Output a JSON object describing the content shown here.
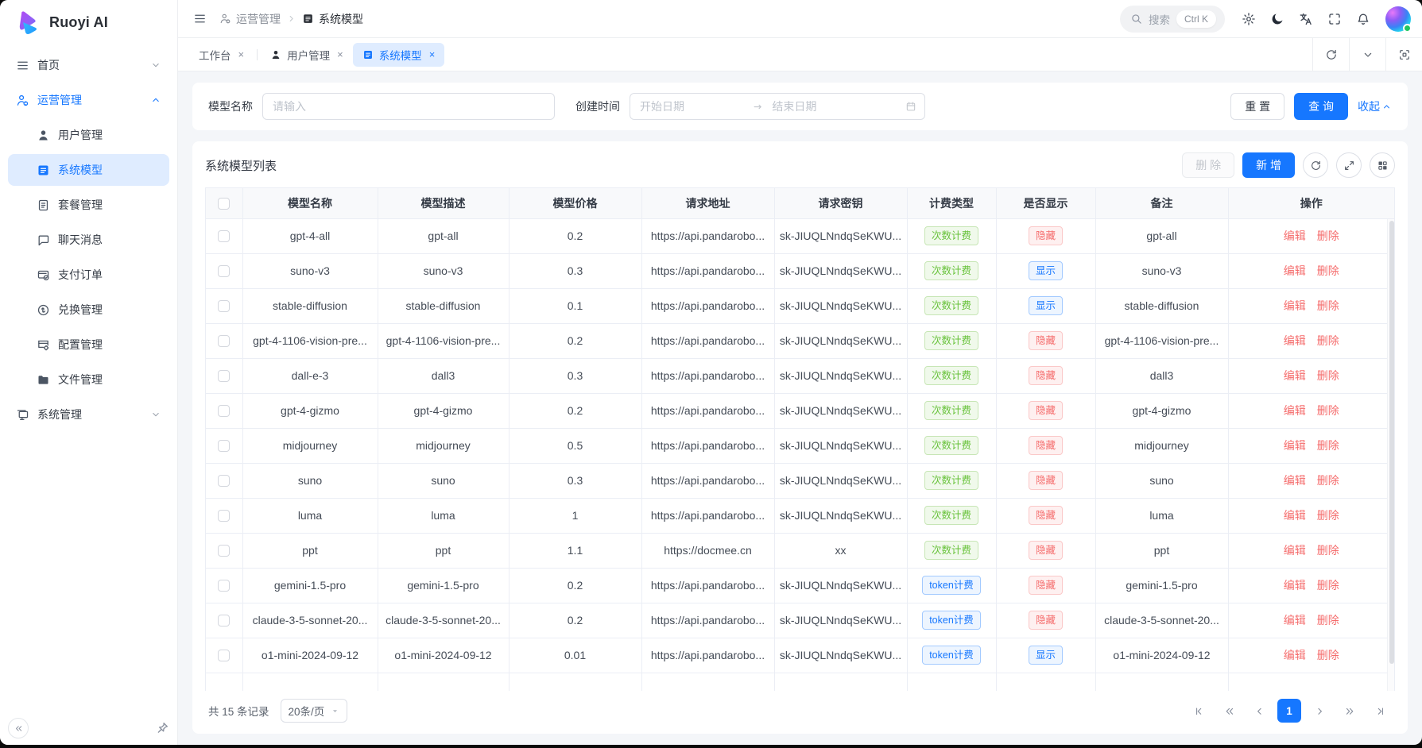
{
  "app": {
    "logo_text": "Ruoyi AI"
  },
  "colors": {
    "primary": "#1677ff",
    "tag_green": "#67c23a",
    "tag_red": "#f56c6c",
    "tag_blue": "#1677ff"
  },
  "sidebar": {
    "items": [
      {
        "id": "home",
        "label": "首页",
        "icon": "menu",
        "level": 1,
        "chevron": "down"
      },
      {
        "id": "operations",
        "label": "运营管理",
        "icon": "user-gear",
        "level": 1,
        "chevron": "up",
        "expanded": true
      },
      {
        "id": "user-management",
        "label": "用户管理",
        "icon": "user",
        "level": 2
      },
      {
        "id": "system-model",
        "label": "系统模型",
        "icon": "list",
        "level": 2,
        "active": true
      },
      {
        "id": "package-management",
        "label": "套餐管理",
        "icon": "doc",
        "level": 2
      },
      {
        "id": "chat-messages",
        "label": "聊天消息",
        "icon": "chat",
        "level": 2
      },
      {
        "id": "payment-orders",
        "label": "支付订单",
        "icon": "receipt",
        "level": 2
      },
      {
        "id": "exchange-management",
        "label": "兑换管理",
        "icon": "exchange",
        "level": 2
      },
      {
        "id": "config-management",
        "label": "配置管理",
        "icon": "config",
        "level": 2
      },
      {
        "id": "file-management",
        "label": "文件管理",
        "icon": "folder",
        "level": 2
      },
      {
        "id": "system-management",
        "label": "系统管理",
        "icon": "monitor",
        "level": 1,
        "chevron": "down"
      }
    ]
  },
  "header": {
    "breadcrumb": [
      {
        "label": "运营管理",
        "icon": "user-gear"
      },
      {
        "label": "系统模型",
        "icon": "list"
      }
    ],
    "search": {
      "placeholder": "搜索",
      "shortcut": "Ctrl K"
    },
    "icons": [
      {
        "name": "settings",
        "icon": "gear"
      },
      {
        "name": "theme-toggle",
        "icon": "moon"
      },
      {
        "name": "language",
        "icon": "translate"
      },
      {
        "name": "fullscreen",
        "icon": "fullscreen"
      },
      {
        "name": "notifications",
        "icon": "bell"
      }
    ]
  },
  "tabs": {
    "items": [
      {
        "id": "workbench",
        "label": "工作台",
        "close": "×"
      },
      {
        "id": "user-management",
        "label": "用户管理",
        "icon": "user",
        "close": "×"
      },
      {
        "id": "system-model",
        "label": "系统模型",
        "icon": "list",
        "close": "×",
        "active": true
      }
    ],
    "controls": [
      {
        "name": "refresh-tab",
        "icon": "refresh"
      },
      {
        "name": "tab-menu",
        "icon": "chevron-down"
      },
      {
        "name": "content-fullscreen",
        "icon": "content-fullscreen"
      }
    ]
  },
  "filter": {
    "model_name_label": "模型名称",
    "model_name_placeholder": "请输入",
    "create_time_label": "创建时间",
    "start_placeholder": "开始日期",
    "end_placeholder": "结束日期",
    "reset_label": "重 置",
    "query_label": "查 询",
    "collapse_label": "收起"
  },
  "table": {
    "title": "系统模型列表",
    "toolbar": {
      "delete_label": "删 除",
      "add_label": "新 增",
      "icon_buttons": [
        {
          "name": "refresh-table",
          "icon": "refresh"
        },
        {
          "name": "expand-table",
          "icon": "expand"
        },
        {
          "name": "column-settings",
          "icon": "columns"
        }
      ]
    },
    "columns": [
      "模型名称",
      "模型描述",
      "模型价格",
      "请求地址",
      "请求密钥",
      "计费类型",
      "是否显示",
      "备注",
      "操作"
    ],
    "actions": {
      "edit": "编辑",
      "delete": "删除"
    },
    "rows": [
      {
        "name": "gpt-4-all",
        "desc": "gpt-all",
        "price": "0.2",
        "url": "https://api.pandarobo...",
        "key": "sk-JIUQLNndqSeKWU...",
        "billing": "次数计费",
        "billing_color": "green",
        "visible": "隐藏",
        "visible_color": "red",
        "remark": "gpt-all"
      },
      {
        "name": "suno-v3",
        "desc": "suno-v3",
        "price": "0.3",
        "url": "https://api.pandarobo...",
        "key": "sk-JIUQLNndqSeKWU...",
        "billing": "次数计费",
        "billing_color": "green",
        "visible": "显示",
        "visible_color": "blue",
        "remark": "suno-v3"
      },
      {
        "name": "stable-diffusion",
        "desc": "stable-diffusion",
        "price": "0.1",
        "url": "https://api.pandarobo...",
        "key": "sk-JIUQLNndqSeKWU...",
        "billing": "次数计费",
        "billing_color": "green",
        "visible": "显示",
        "visible_color": "blue",
        "remark": "stable-diffusion"
      },
      {
        "name": "gpt-4-1106-vision-pre...",
        "desc": "gpt-4-1106-vision-pre...",
        "price": "0.2",
        "url": "https://api.pandarobo...",
        "key": "sk-JIUQLNndqSeKWU...",
        "billing": "次数计费",
        "billing_color": "green",
        "visible": "隐藏",
        "visible_color": "red",
        "remark": "gpt-4-1106-vision-pre..."
      },
      {
        "name": "dall-e-3",
        "desc": "dall3",
        "price": "0.3",
        "url": "https://api.pandarobo...",
        "key": "sk-JIUQLNndqSeKWU...",
        "billing": "次数计费",
        "billing_color": "green",
        "visible": "隐藏",
        "visible_color": "red",
        "remark": "dall3"
      },
      {
        "name": "gpt-4-gizmo",
        "desc": "gpt-4-gizmo",
        "price": "0.2",
        "url": "https://api.pandarobo...",
        "key": "sk-JIUQLNndqSeKWU...",
        "billing": "次数计费",
        "billing_color": "green",
        "visible": "隐藏",
        "visible_color": "red",
        "remark": "gpt-4-gizmo"
      },
      {
        "name": "midjourney",
        "desc": "midjourney",
        "price": "0.5",
        "url": "https://api.pandarobo...",
        "key": "sk-JIUQLNndqSeKWU...",
        "billing": "次数计费",
        "billing_color": "green",
        "visible": "隐藏",
        "visible_color": "red",
        "remark": "midjourney"
      },
      {
        "name": "suno",
        "desc": "suno",
        "price": "0.3",
        "url": "https://api.pandarobo...",
        "key": "sk-JIUQLNndqSeKWU...",
        "billing": "次数计费",
        "billing_color": "green",
        "visible": "隐藏",
        "visible_color": "red",
        "remark": "suno"
      },
      {
        "name": "luma",
        "desc": "luma",
        "price": "1",
        "url": "https://api.pandarobo...",
        "key": "sk-JIUQLNndqSeKWU...",
        "billing": "次数计费",
        "billing_color": "green",
        "visible": "隐藏",
        "visible_color": "red",
        "remark": "luma"
      },
      {
        "name": "ppt",
        "desc": "ppt",
        "price": "1.1",
        "url": "https://docmee.cn",
        "key": "xx",
        "billing": "次数计费",
        "billing_color": "green",
        "visible": "隐藏",
        "visible_color": "red",
        "remark": "ppt"
      },
      {
        "name": "gemini-1.5-pro",
        "desc": "gemini-1.5-pro",
        "price": "0.2",
        "url": "https://api.pandarobo...",
        "key": "sk-JIUQLNndqSeKWU...",
        "billing": "token计费",
        "billing_color": "blue",
        "visible": "隐藏",
        "visible_color": "red",
        "remark": "gemini-1.5-pro"
      },
      {
        "name": "claude-3-5-sonnet-20...",
        "desc": "claude-3-5-sonnet-20...",
        "price": "0.2",
        "url": "https://api.pandarobo...",
        "key": "sk-JIUQLNndqSeKWU...",
        "billing": "token计费",
        "billing_color": "blue",
        "visible": "隐藏",
        "visible_color": "red",
        "remark": "claude-3-5-sonnet-20..."
      },
      {
        "name": "o1-mini-2024-09-12",
        "desc": "o1-mini-2024-09-12",
        "price": "0.01",
        "url": "https://api.pandarobo...",
        "key": "sk-JIUQLNndqSeKWU...",
        "billing": "token计费",
        "billing_color": "blue",
        "visible": "显示",
        "visible_color": "blue",
        "remark": "o1-mini-2024-09-12"
      }
    ]
  },
  "pagination": {
    "total": "共 15 条记录",
    "page_size": "20条/页",
    "current_page": "1",
    "buttons": [
      {
        "name": "first-page",
        "icon": "page-first"
      },
      {
        "name": "prev-pages",
        "icon": "page-prev-more"
      },
      {
        "name": "prev-page",
        "icon": "page-prev"
      },
      {
        "name": "page-1",
        "label": "1",
        "current": true
      },
      {
        "name": "next-page",
        "icon": "page-next"
      },
      {
        "name": "next-pages",
        "icon": "page-next-more"
      },
      {
        "name": "last-page",
        "icon": "page-last"
      }
    ]
  }
}
